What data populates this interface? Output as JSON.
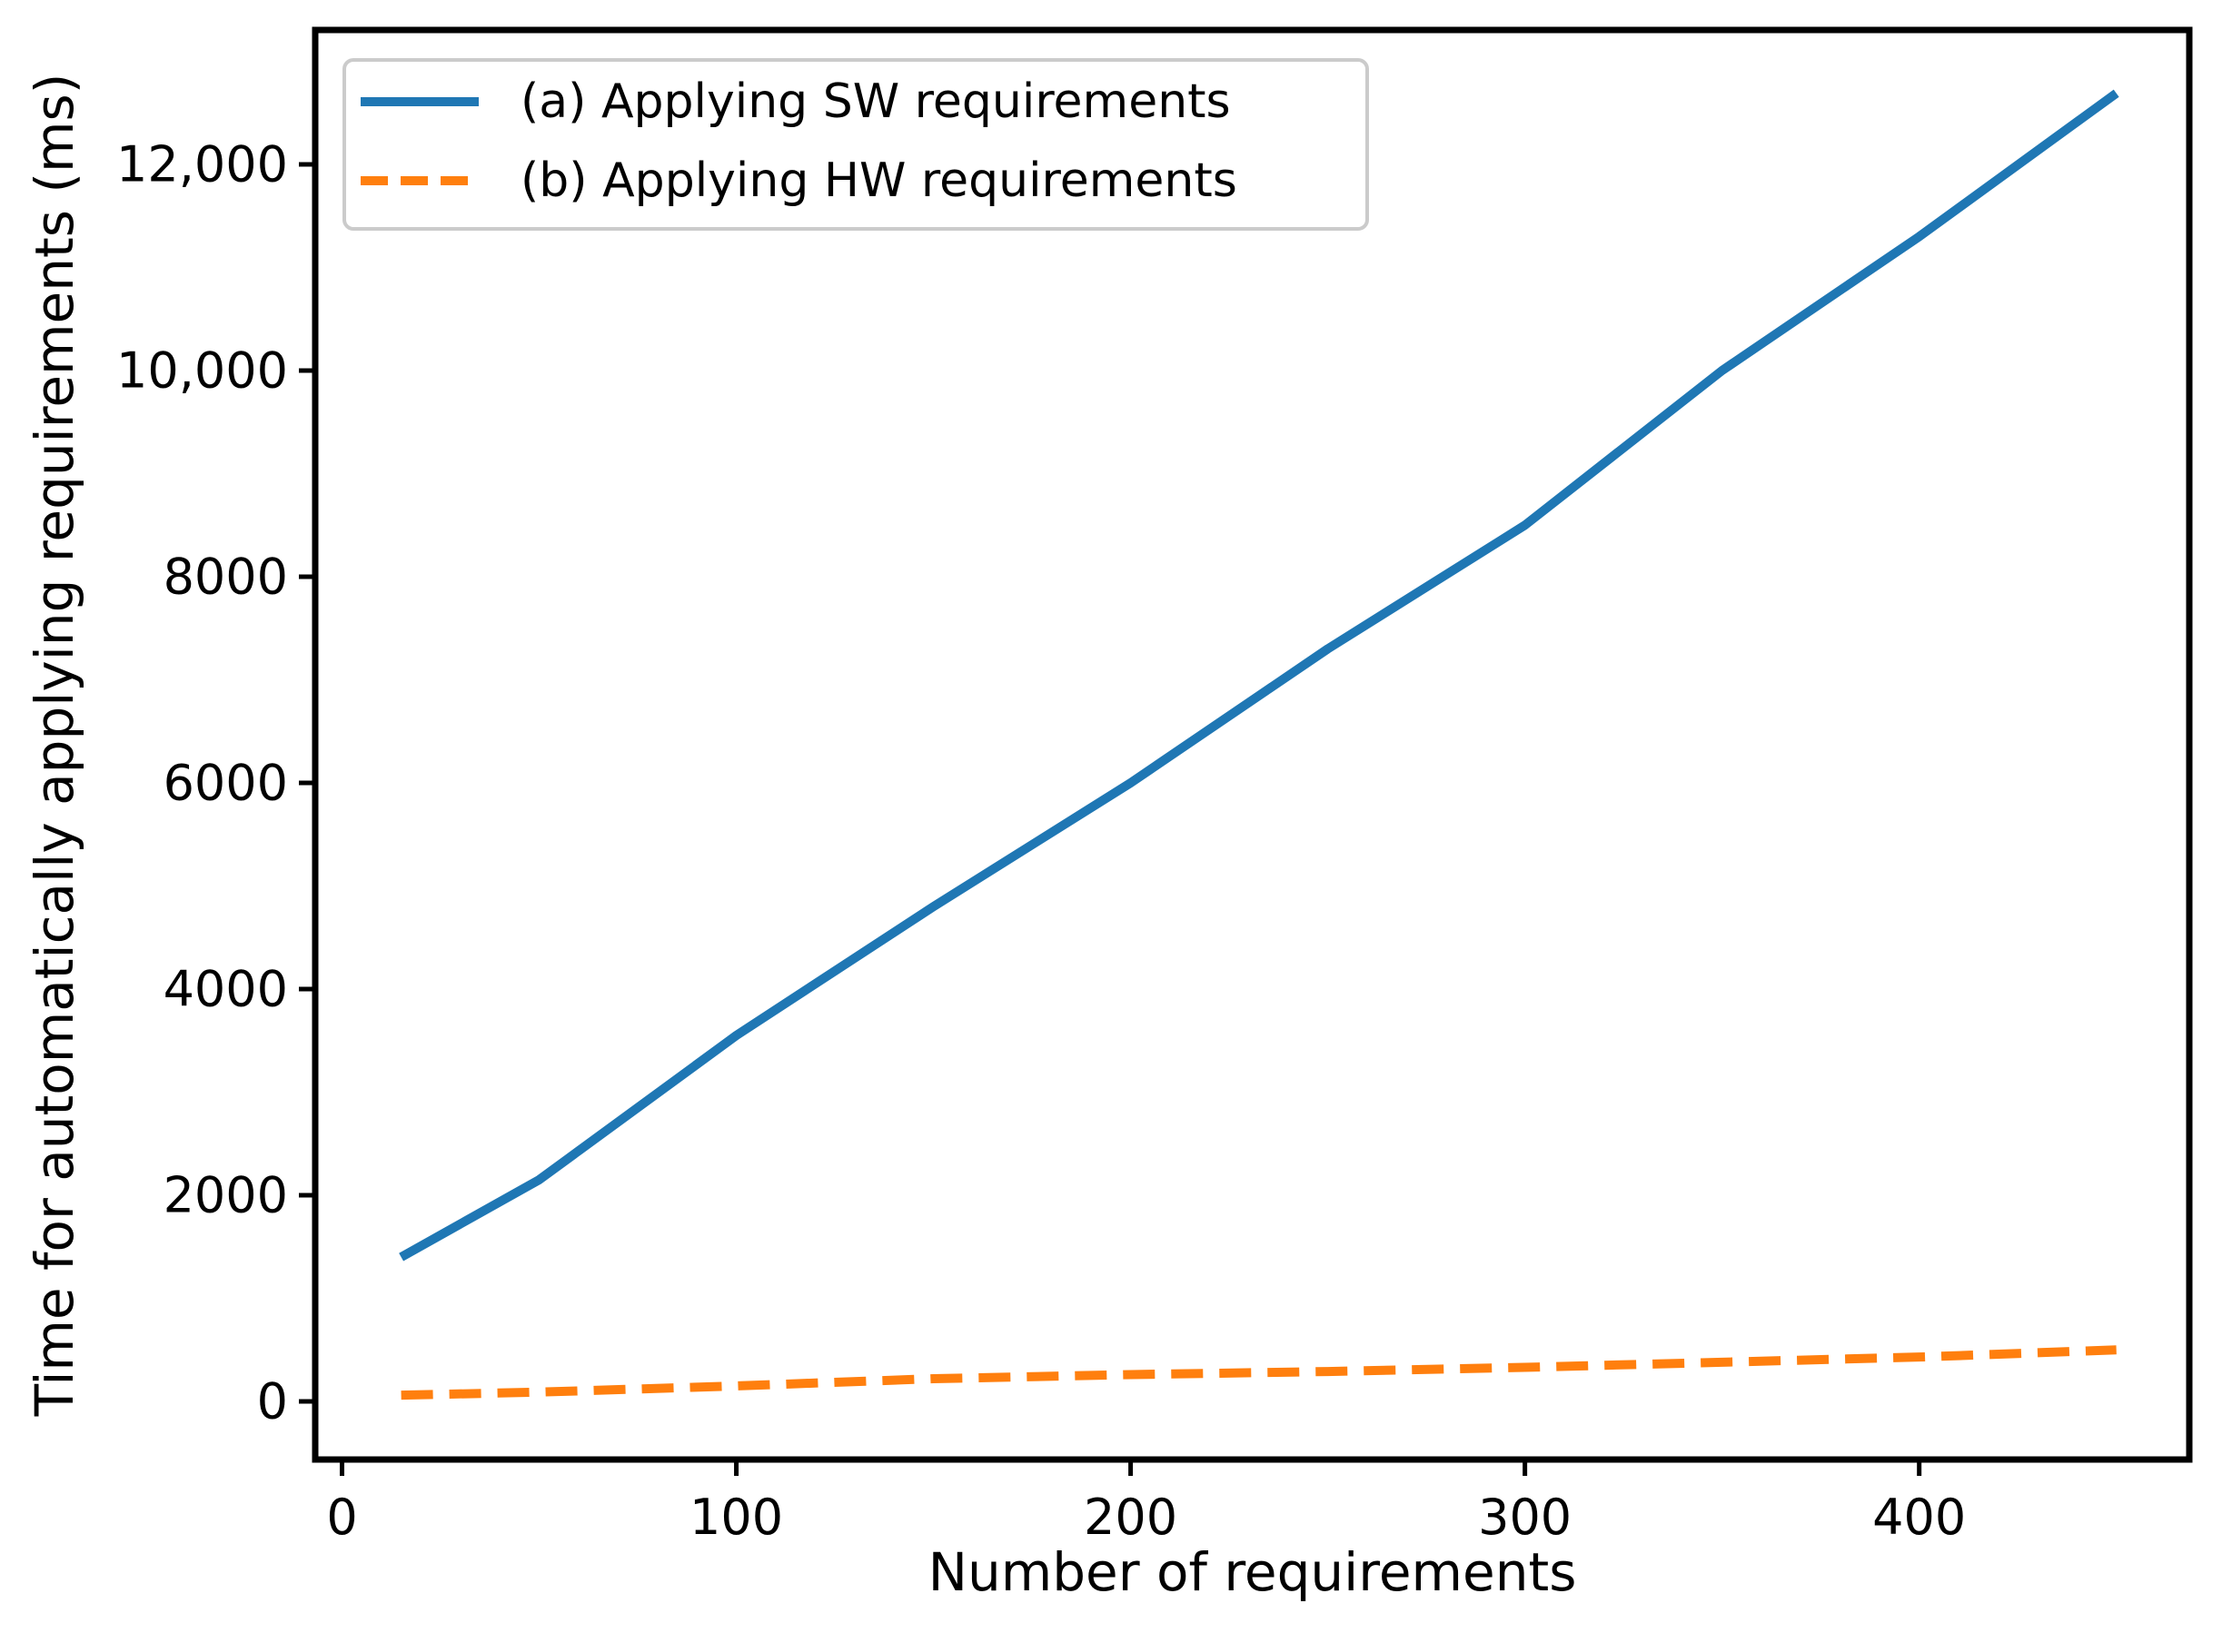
{
  "page": {
    "background": "#ffffff"
  },
  "chart_data": {
    "type": "line",
    "title": "",
    "xlabel": "Number of requirements",
    "ylabel": "Time for automatically applying requirements (ms)",
    "x": [
      15,
      50,
      100,
      150,
      200,
      250,
      300,
      350,
      400,
      450
    ],
    "series": [
      {
        "name": "(a) Applying SW requirements",
        "color": "#1f77b4",
        "line_style": "solid",
        "values": [
          1400,
          2150,
          3550,
          4800,
          6000,
          7300,
          8500,
          10000,
          11300,
          12690
        ]
      },
      {
        "name": "(b) Applying HW requirements",
        "color": "#ff7f0e",
        "line_style": "dashed",
        "values": [
          60,
          90,
          150,
          220,
          260,
          290,
          330,
          380,
          430,
          500
        ]
      }
    ],
    "xlim": [
      -6.8,
      468.5
    ],
    "ylim": [
      -564,
      13304
    ],
    "xticks": {
      "values": [
        0,
        100,
        200,
        300,
        400
      ],
      "labels": [
        "0",
        "100",
        "200",
        "300",
        "400"
      ]
    },
    "yticks": {
      "values": [
        0,
        2000,
        4000,
        6000,
        8000,
        10000,
        12000
      ],
      "labels": [
        "0",
        "2000",
        "4000",
        "6000",
        "8000",
        "10,000",
        "12,000"
      ]
    },
    "grid": false,
    "axis_color": "#000000",
    "legend": {
      "position": "upper left",
      "border_color": "#cbcbcb",
      "background": "#ffffff"
    }
  }
}
